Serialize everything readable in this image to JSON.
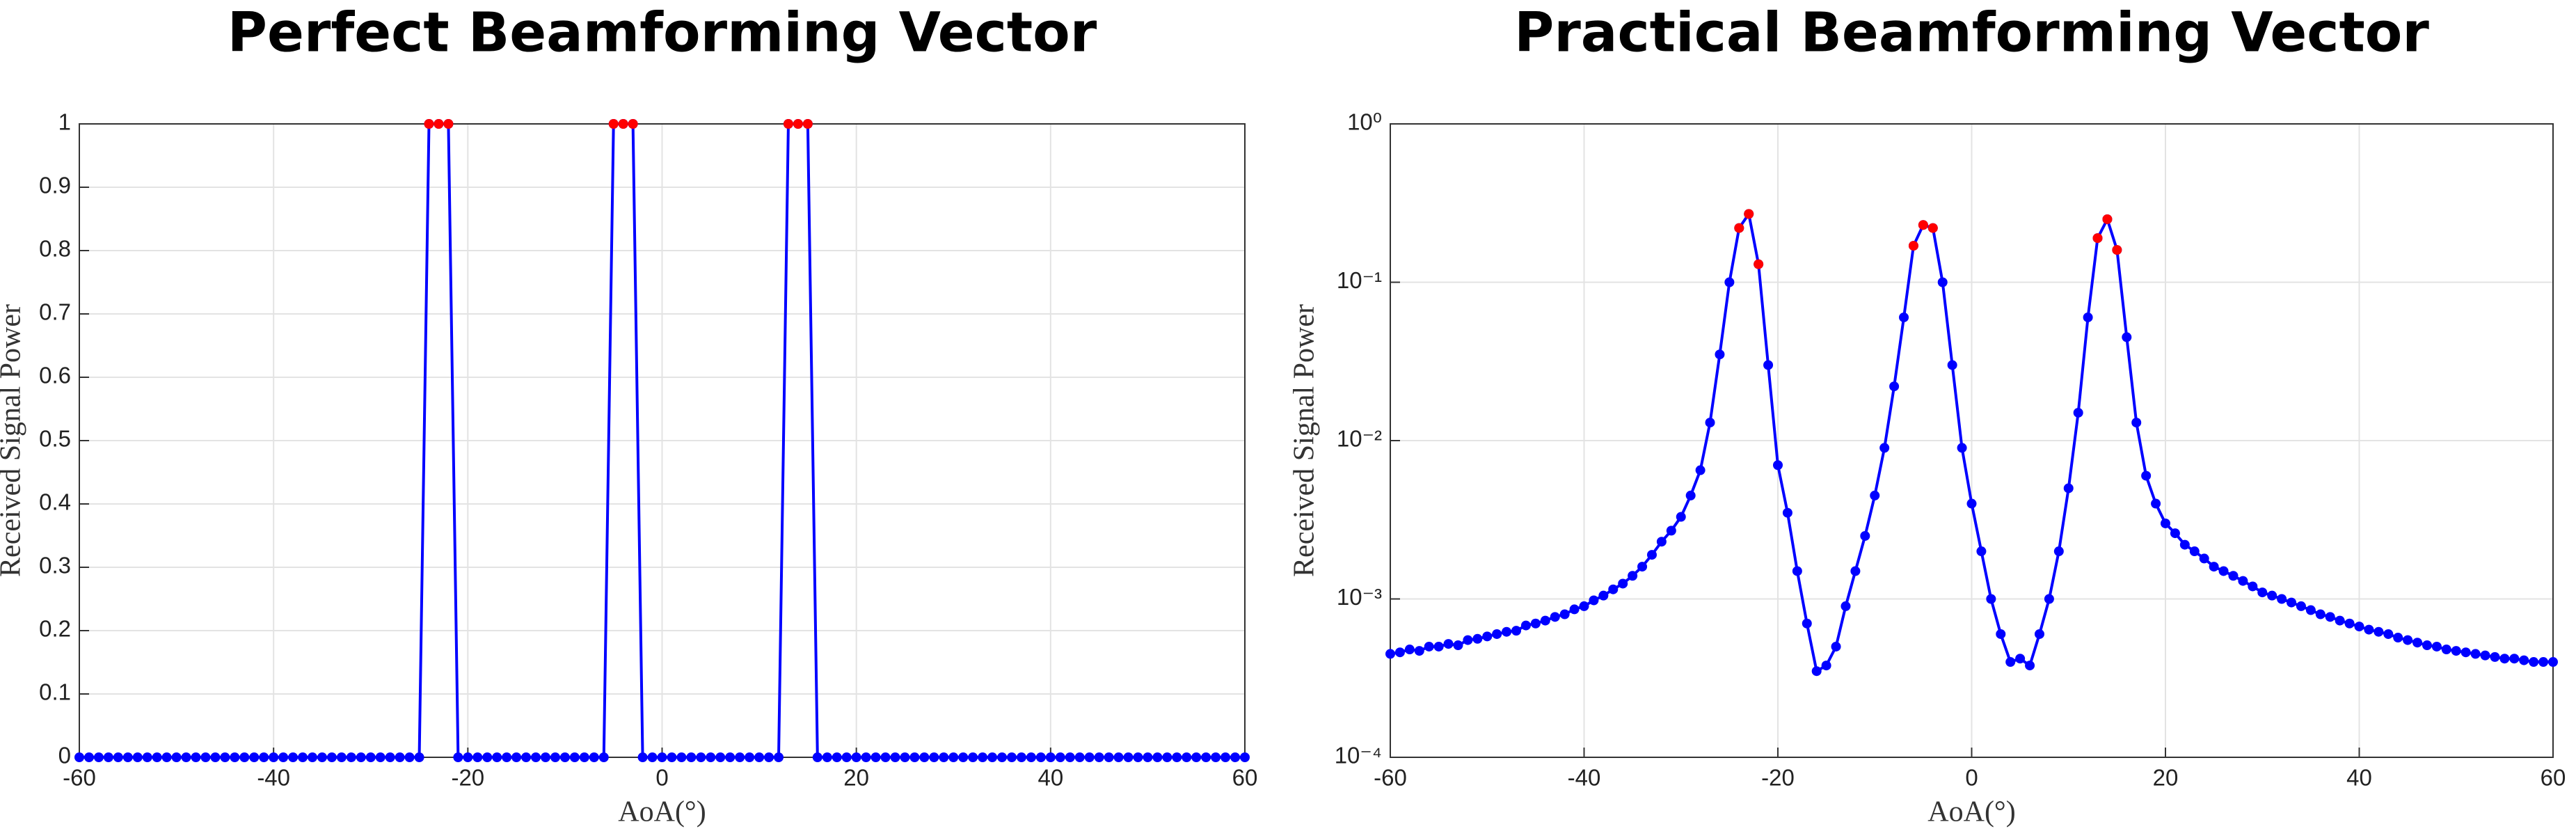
{
  "chart_data": [
    {
      "type": "line",
      "title": "Perfect Beamforming Vector",
      "xlabel": "AoA(°)",
      "ylabel": "Received Signal Power",
      "xlim": [
        -60,
        60
      ],
      "xticks": [
        -60,
        -40,
        -20,
        0,
        20,
        40,
        60
      ],
      "ylim": [
        0,
        1
      ],
      "yticks": [
        0,
        0.1,
        0.2,
        0.3,
        0.4,
        0.5,
        0.6,
        0.7,
        0.8,
        0.9,
        1
      ],
      "grid": true,
      "log_y": false,
      "series": [
        {
          "color": "#0000ff",
          "line": true,
          "x": [
            -60,
            -59,
            -58,
            -57,
            -56,
            -55,
            -54,
            -53,
            -52,
            -51,
            -50,
            -49,
            -48,
            -47,
            -46,
            -45,
            -44,
            -43,
            -42,
            -41,
            -40,
            -39,
            -38,
            -37,
            -36,
            -35,
            -34,
            -33,
            -32,
            -31,
            -30,
            -29,
            -28,
            -27,
            -26,
            -25,
            -24,
            -23,
            -22,
            -21,
            -20,
            -19,
            -18,
            -17,
            -16,
            -15,
            -14,
            -13,
            -12,
            -11,
            -10,
            -9,
            -8,
            -7,
            -6,
            -5,
            -4,
            -3,
            -2,
            -1,
            0,
            1,
            2,
            3,
            4,
            5,
            6,
            7,
            8,
            9,
            10,
            11,
            12,
            13,
            14,
            15,
            16,
            17,
            18,
            19,
            20,
            21,
            22,
            23,
            24,
            25,
            26,
            27,
            28,
            29,
            30,
            31,
            32,
            33,
            34,
            35,
            36,
            37,
            38,
            39,
            40,
            41,
            42,
            43,
            44,
            45,
            46,
            47,
            48,
            49,
            50,
            51,
            52,
            53,
            54,
            55,
            56,
            57,
            58,
            59,
            60
          ],
          "values": [
            0,
            0,
            0,
            0,
            0,
            0,
            0,
            0,
            0,
            0,
            0,
            0,
            0,
            0,
            0,
            0,
            0,
            0,
            0,
            0,
            0,
            0,
            0,
            0,
            0,
            0,
            0,
            0,
            0,
            0,
            0,
            0,
            0,
            0,
            0,
            0,
            1,
            1,
            1,
            0,
            0,
            0,
            0,
            0,
            0,
            0,
            0,
            0,
            0,
            0,
            0,
            0,
            0,
            0,
            0,
            1,
            1,
            1,
            0,
            0,
            0,
            0,
            0,
            0,
            0,
            0,
            0,
            0,
            0,
            0,
            0,
            0,
            0,
            1,
            1,
            1,
            0,
            0,
            0,
            0,
            0,
            0,
            0,
            0,
            0,
            0,
            0,
            0,
            0,
            0,
            0,
            0,
            0,
            0,
            0,
            0,
            0,
            0,
            0,
            0,
            0,
            0,
            0,
            0,
            0,
            0,
            0,
            0,
            0,
            0,
            0,
            0,
            0,
            0,
            0,
            0,
            0,
            0,
            0,
            0,
            0
          ]
        },
        {
          "color": "#ff0000",
          "line": false,
          "x": [
            -24,
            -23,
            -22,
            -5,
            -4,
            -3,
            13,
            14,
            15
          ],
          "values": [
            1,
            1,
            1,
            1,
            1,
            1,
            1,
            1,
            1
          ]
        }
      ]
    },
    {
      "type": "line",
      "title": "Practical Beamforming Vector",
      "xlabel": "AoA(°)",
      "ylabel": "Received Signal Power",
      "xlim": [
        -60,
        60
      ],
      "xticks": [
        -60,
        -40,
        -20,
        0,
        20,
        40,
        60
      ],
      "ylim": [
        0.0001,
        1
      ],
      "yticks": [
        {
          "value": 0.0001,
          "label": "10⁻⁴"
        },
        {
          "value": 0.001,
          "label": "10⁻³"
        },
        {
          "value": 0.01,
          "label": "10⁻²"
        },
        {
          "value": 0.1,
          "label": "10⁻¹"
        },
        {
          "value": 1,
          "label": "10⁰"
        }
      ],
      "grid": true,
      "log_y": true,
      "series": [
        {
          "color": "#0000ff",
          "line": true,
          "x": [
            -60,
            -59,
            -58,
            -57,
            -56,
            -55,
            -54,
            -53,
            -52,
            -51,
            -50,
            -49,
            -48,
            -47,
            -46,
            -45,
            -44,
            -43,
            -42,
            -41,
            -40,
            -39,
            -38,
            -37,
            -36,
            -35,
            -34,
            -33,
            -32,
            -31,
            -30,
            -29,
            -28,
            -27,
            -26,
            -25,
            -24,
            -23,
            -22,
            -21,
            -20,
            -19,
            -18,
            -17,
            -16,
            -15,
            -14,
            -13,
            -12,
            -11,
            -10,
            -9,
            -8,
            -7,
            -6,
            -5,
            -4,
            -3,
            -2,
            -1,
            0,
            1,
            2,
            3,
            4,
            5,
            6,
            7,
            8,
            9,
            10,
            11,
            12,
            13,
            14,
            15,
            16,
            17,
            18,
            19,
            20,
            21,
            22,
            23,
            24,
            25,
            26,
            27,
            28,
            29,
            30,
            31,
            32,
            33,
            34,
            35,
            36,
            37,
            38,
            39,
            40,
            41,
            42,
            43,
            44,
            45,
            46,
            47,
            48,
            49,
            50,
            51,
            52,
            53,
            54,
            55,
            56,
            57,
            58,
            59,
            60
          ],
          "values": [
            0.00045,
            0.00046,
            0.00048,
            0.00047,
            0.0005,
            0.0005,
            0.00052,
            0.00051,
            0.00055,
            0.00056,
            0.00058,
            0.0006,
            0.00062,
            0.00063,
            0.00068,
            0.0007,
            0.00073,
            0.00077,
            0.0008,
            0.00086,
            0.0009,
            0.00098,
            0.00105,
            0.00115,
            0.00125,
            0.0014,
            0.0016,
            0.0019,
            0.0023,
            0.0027,
            0.0033,
            0.0045,
            0.0065,
            0.013,
            0.035,
            0.1,
            0.22,
            0.27,
            0.13,
            0.03,
            0.007,
            0.0035,
            0.0015,
            0.0007,
            0.00035,
            0.00038,
            0.0005,
            0.0009,
            0.0015,
            0.0025,
            0.0045,
            0.009,
            0.022,
            0.06,
            0.17,
            0.23,
            0.22,
            0.1,
            0.03,
            0.009,
            0.004,
            0.002,
            0.001,
            0.0006,
            0.0004,
            0.00042,
            0.00038,
            0.0006,
            0.001,
            0.002,
            0.005,
            0.015,
            0.06,
            0.19,
            0.25,
            0.16,
            0.045,
            0.013,
            0.006,
            0.004,
            0.003,
            0.0026,
            0.0022,
            0.002,
            0.0018,
            0.0016,
            0.0015,
            0.0014,
            0.0013,
            0.0012,
            0.0011,
            0.00105,
            0.001,
            0.00095,
            0.0009,
            0.00085,
            0.0008,
            0.00077,
            0.00073,
            0.0007,
            0.00067,
            0.00064,
            0.00062,
            0.0006,
            0.00057,
            0.00055,
            0.00053,
            0.00051,
            0.0005,
            0.00048,
            0.00047,
            0.00046,
            0.00045,
            0.00044,
            0.00043,
            0.00042,
            0.00042,
            0.00041,
            0.0004,
            0.0004,
            0.0004
          ]
        },
        {
          "color": "#ff0000",
          "line": false,
          "x": [
            -24,
            -23,
            -22,
            -6,
            -5,
            -4,
            13,
            14,
            15
          ],
          "values": [
            0.22,
            0.27,
            0.13,
            0.17,
            0.23,
            0.22,
            0.19,
            0.25,
            0.16
          ]
        }
      ]
    }
  ]
}
